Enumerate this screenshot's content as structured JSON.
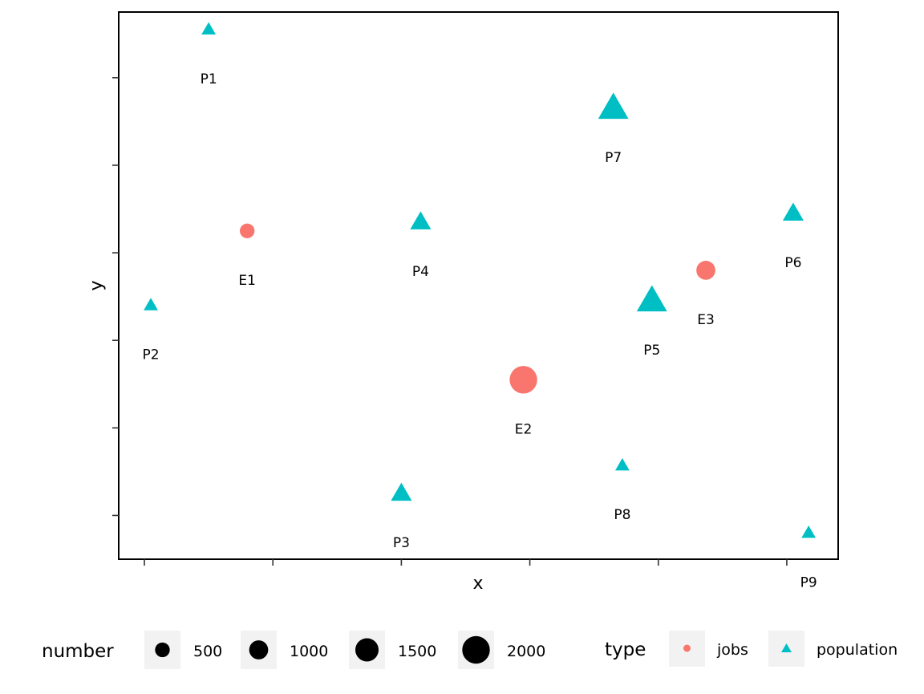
{
  "chart_data": {
    "type": "scatter",
    "xlabel": "x",
    "ylabel": "y",
    "xlim": [
      0.8,
      6.4
    ],
    "ylim": [
      0.5,
      6.75
    ],
    "x_ticks": [
      1,
      2,
      3,
      4,
      5,
      6
    ],
    "y_ticks": [
      1,
      2,
      3,
      4,
      5,
      6
    ],
    "x_tick_labels_shown": false,
    "y_tick_labels_shown": false,
    "grid": false,
    "series": [
      {
        "name": "jobs",
        "color": "#F8766D",
        "shape": "circle",
        "points": [
          {
            "label": "E1",
            "x": 1.8,
            "y": 4.25,
            "number": 500
          },
          {
            "label": "E2",
            "x": 3.95,
            "y": 2.55,
            "number": 2000
          },
          {
            "label": "E3",
            "x": 5.37,
            "y": 3.8,
            "number": 1000
          }
        ]
      },
      {
        "name": "population",
        "color": "#00BFC4",
        "shape": "triangle",
        "points": [
          {
            "label": "P1",
            "x": 1.5,
            "y": 6.55,
            "number": 300
          },
          {
            "label": "P2",
            "x": 1.05,
            "y": 3.4,
            "number": 300
          },
          {
            "label": "P3",
            "x": 3.0,
            "y": 1.25,
            "number": 1000
          },
          {
            "label": "P4",
            "x": 3.15,
            "y": 4.35,
            "number": 1000
          },
          {
            "label": "P5",
            "x": 4.95,
            "y": 3.45,
            "number": 2000
          },
          {
            "label": "P6",
            "x": 6.05,
            "y": 4.45,
            "number": 1000
          },
          {
            "label": "P7",
            "x": 4.65,
            "y": 5.65,
            "number": 2000
          },
          {
            "label": "P8",
            "x": 4.72,
            "y": 1.57,
            "number": 300
          },
          {
            "label": "P9",
            "x": 6.17,
            "y": 0.8,
            "number": 300
          }
        ]
      }
    ],
    "legend": {
      "placement": "bottom",
      "size": {
        "title": "number",
        "values": [
          500,
          1000,
          1500,
          2000
        ]
      },
      "type": {
        "title": "type",
        "entries": [
          "jobs",
          "population"
        ]
      }
    }
  }
}
